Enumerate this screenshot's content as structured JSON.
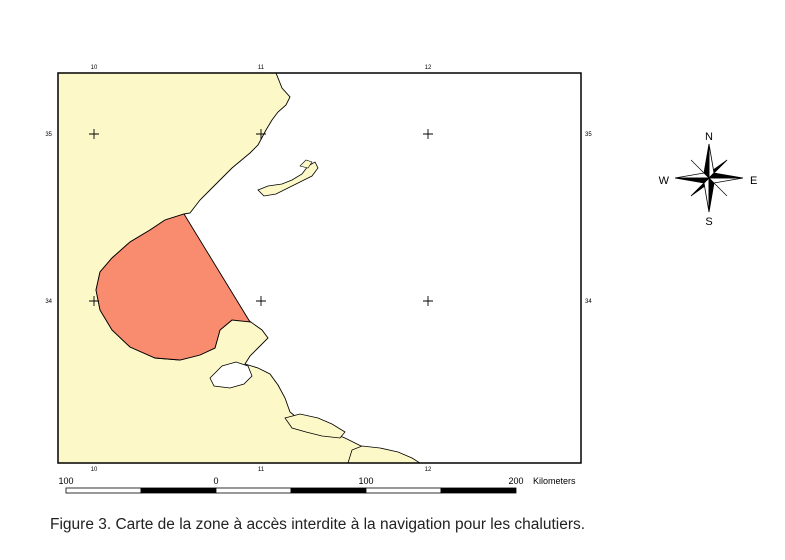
{
  "map": {
    "colors": {
      "land": "#fdf8c8",
      "sea": "#ffffff",
      "restricted_zone": "#f98b6e",
      "frame": "#000000"
    },
    "longitude_labels": [
      "10",
      "11",
      "12"
    ],
    "latitude_labels": [
      "35",
      "34"
    ],
    "grid_marker": "plus-cross"
  },
  "scale_bar": {
    "labels": [
      "100",
      "0",
      "100",
      "200"
    ],
    "unit": "Kilometers"
  },
  "compass": {
    "north": "N",
    "south": "S",
    "east": "E",
    "west": "W"
  },
  "caption": "Figure 3. Carte de la zone à accès interdite à la navigation pour les chalutiers."
}
